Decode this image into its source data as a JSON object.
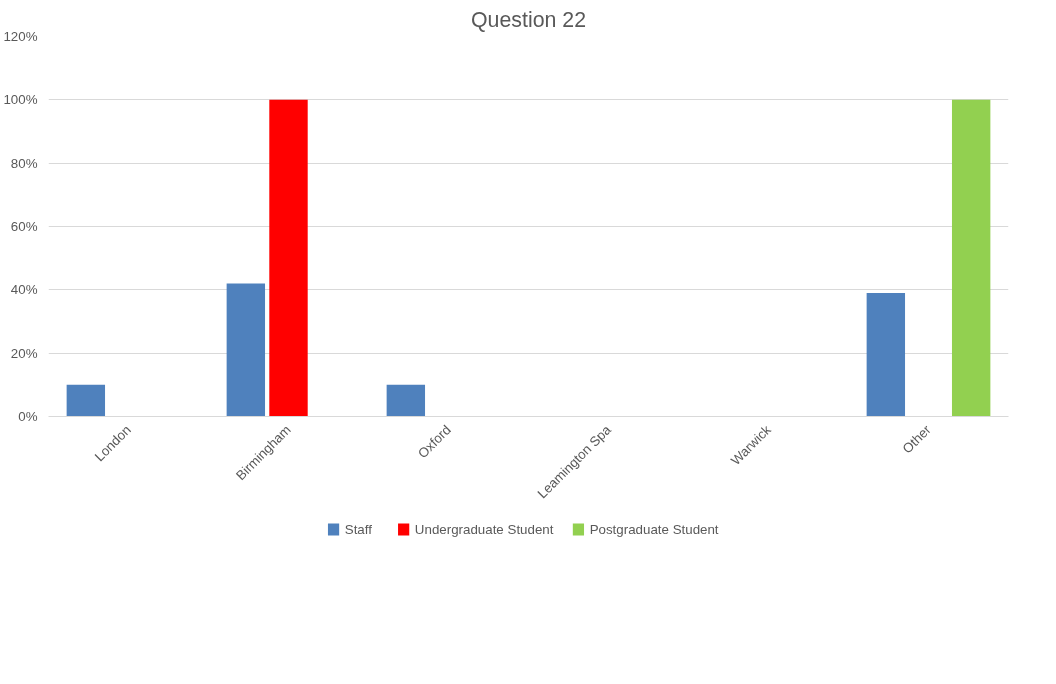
{
  "chart_data": {
    "type": "bar",
    "title": "Question 22",
    "categories": [
      "London",
      "Birmingham",
      "Oxford",
      "Leamington Spa",
      "Warwick",
      "Other"
    ],
    "series": [
      {
        "name": "Staff",
        "color": "#4f81bd",
        "values": [
          10,
          42,
          10,
          0,
          0,
          39
        ]
      },
      {
        "name": "Undergraduate Student",
        "color": "#ff0000",
        "values": [
          0,
          100,
          0,
          0,
          0,
          0
        ]
      },
      {
        "name": "Postgraduate Student",
        "color": "#92d050",
        "values": [
          0,
          0,
          0,
          0,
          0,
          100
        ]
      }
    ],
    "ylim": [
      0,
      120
    ],
    "yticks": [
      {
        "value": 0,
        "label": "0%"
      },
      {
        "value": 20,
        "label": "20%"
      },
      {
        "value": 40,
        "label": "40%"
      },
      {
        "value": 60,
        "label": "60%"
      },
      {
        "value": 80,
        "label": "80%"
      },
      {
        "value": 100,
        "label": "100%"
      },
      {
        "value": 120,
        "label": "120%"
      }
    ],
    "grid": "y",
    "legend": "bottom"
  }
}
